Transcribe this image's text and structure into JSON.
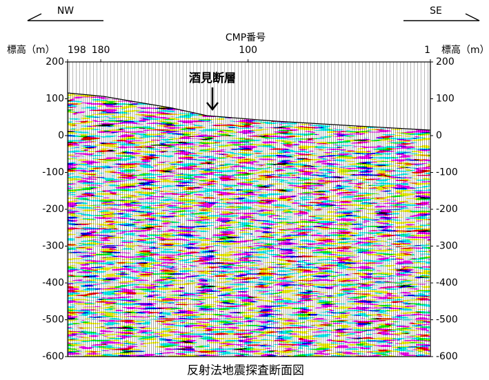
{
  "directions": {
    "left": "NW",
    "right": "SE"
  },
  "cmp_axis": {
    "title": "CMP番号",
    "ticks": [
      198,
      180,
      100,
      1
    ]
  },
  "elevation_axis": {
    "label": "標高（m）",
    "ticks": [
      200,
      100,
      0,
      -100,
      -200,
      -300,
      -400,
      -500,
      -600
    ]
  },
  "annotation": "酒見断層",
  "caption": "反射法地震探査断面図"
}
